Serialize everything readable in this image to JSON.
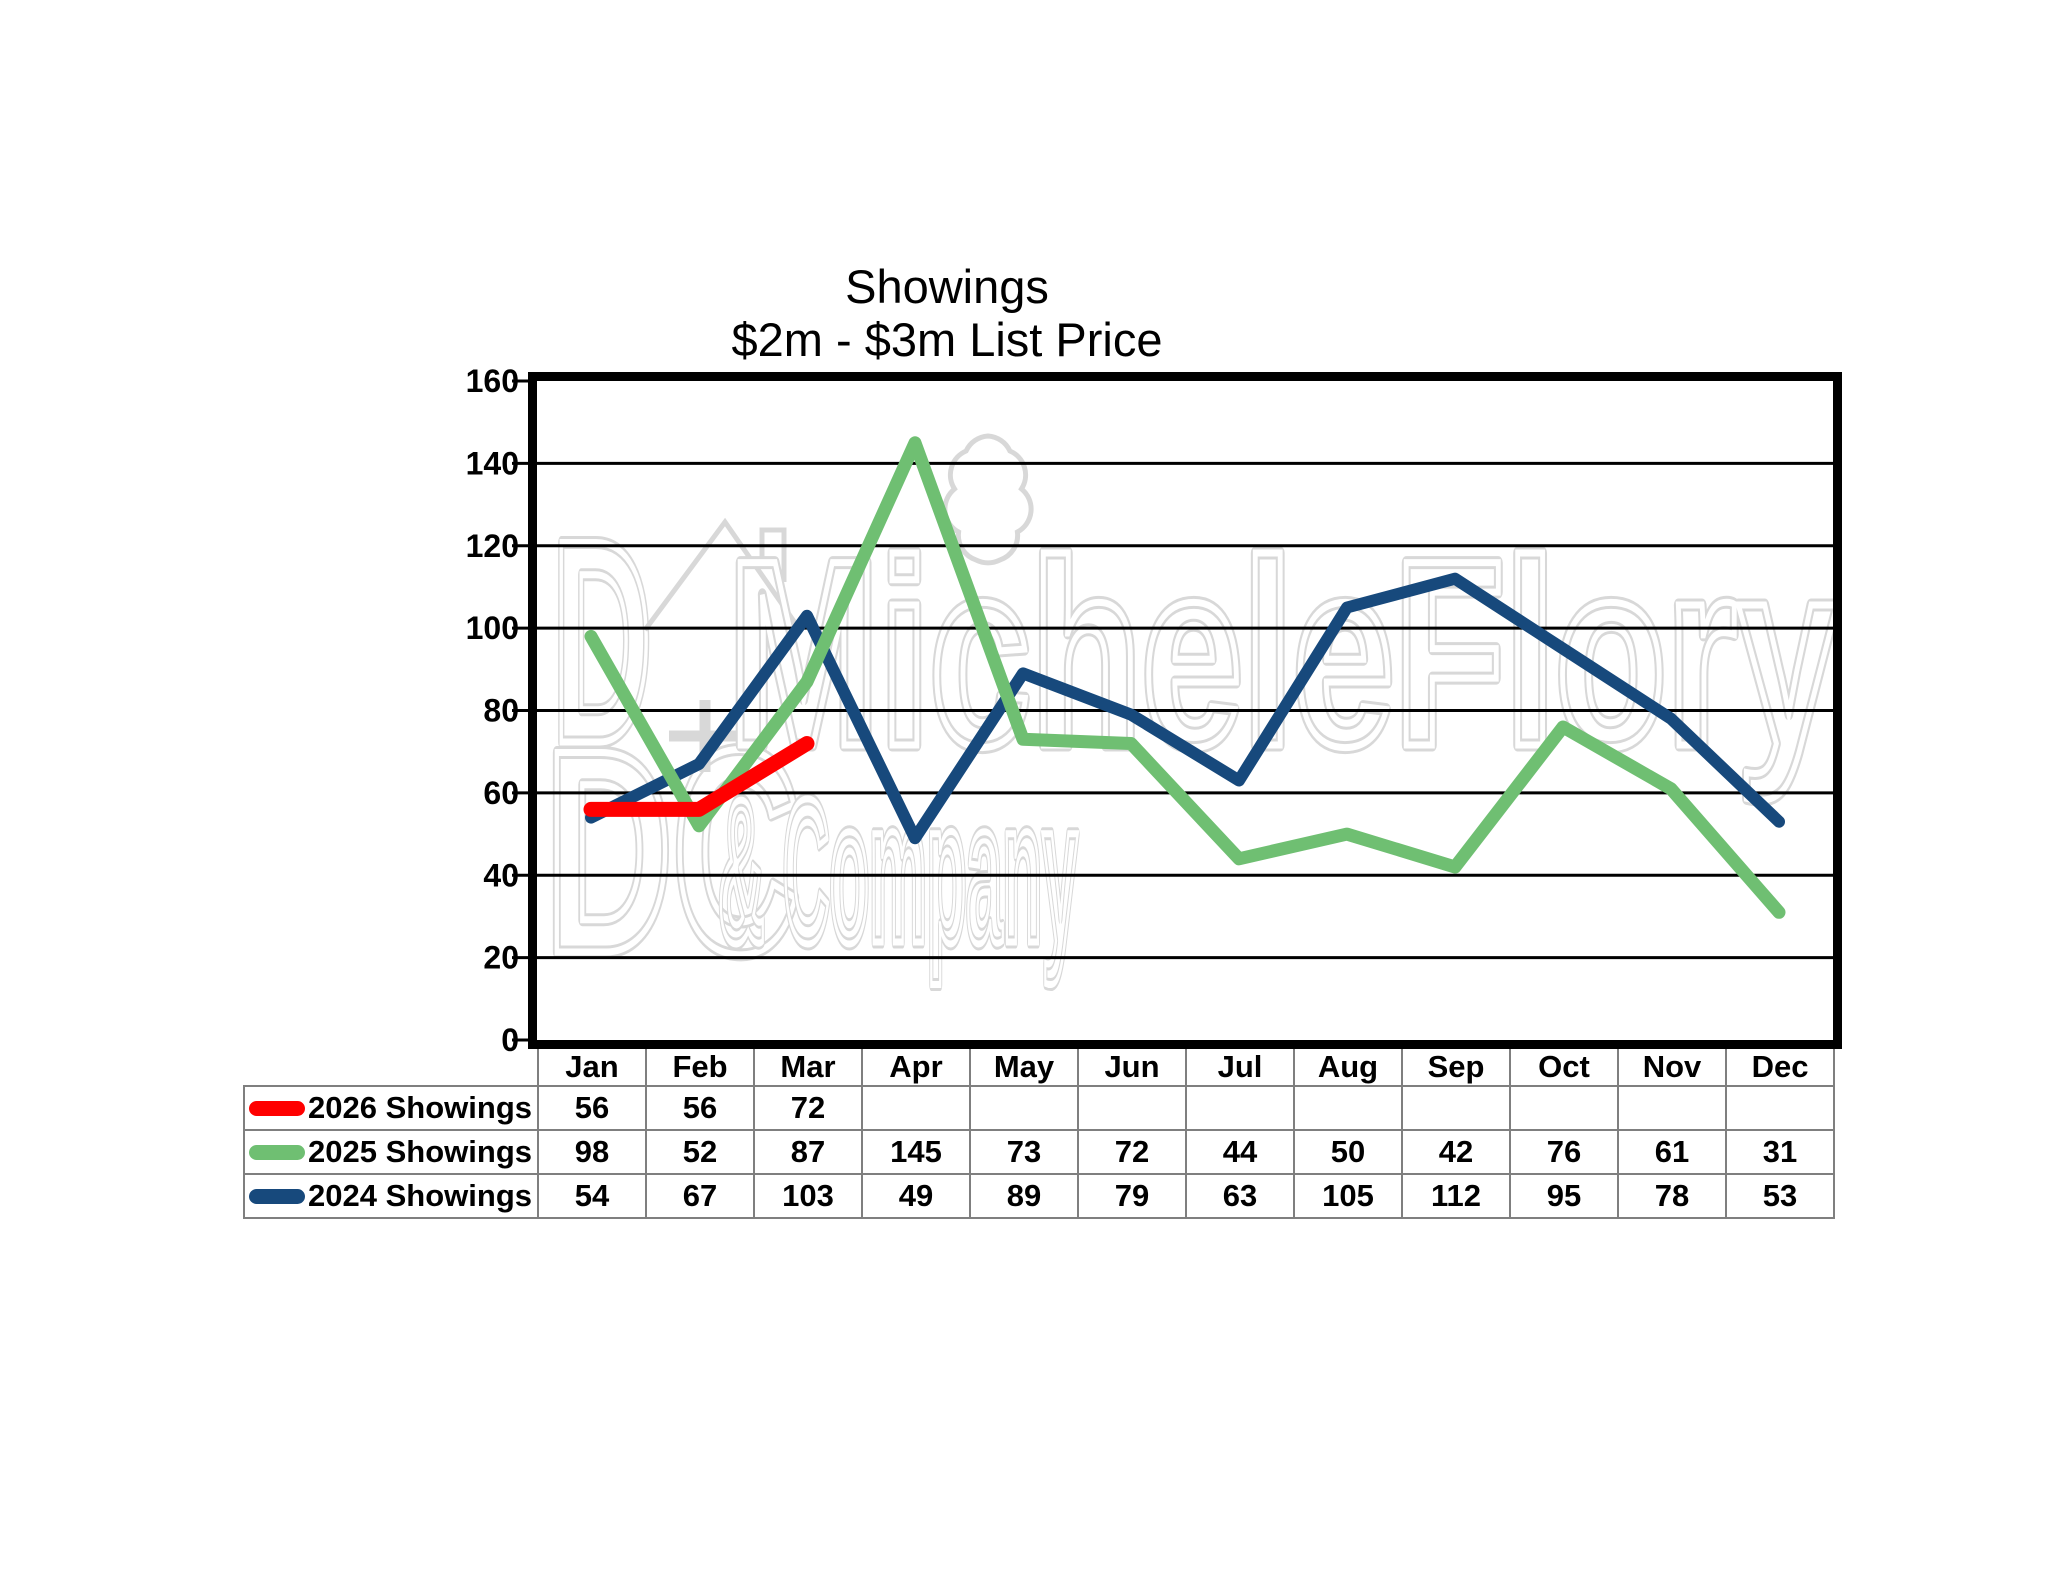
{
  "title": "Showings",
  "subtitle": "$2m - $3m List Price",
  "watermark": {
    "logo_text": "DC",
    "line1": "MicheleFlory",
    "line2": "& Company",
    "color": "#d8d8d8"
  },
  "chart_data": {
    "type": "line",
    "title": "Showings",
    "subtitle": "$2m - $3m List Price",
    "categories": [
      "Jan",
      "Feb",
      "Mar",
      "Apr",
      "May",
      "Jun",
      "Jul",
      "Aug",
      "Sep",
      "Oct",
      "Nov",
      "Dec"
    ],
    "series": [
      {
        "name": "2026 Showings",
        "color": "#ff0000",
        "values": [
          56,
          56,
          72,
          null,
          null,
          null,
          null,
          null,
          null,
          null,
          null,
          null
        ]
      },
      {
        "name": "2025 Showings",
        "color": "#6fbf72",
        "values": [
          98,
          52,
          87,
          145,
          73,
          72,
          44,
          50,
          42,
          76,
          61,
          31
        ]
      },
      {
        "name": "2024 Showings",
        "color": "#17497c",
        "values": [
          54,
          67,
          103,
          49,
          89,
          79,
          63,
          105,
          112,
          95,
          78,
          53
        ]
      }
    ],
    "ylim": [
      0,
      160
    ],
    "ytick_step": 20,
    "grid": true,
    "legend_position": "table-left"
  }
}
